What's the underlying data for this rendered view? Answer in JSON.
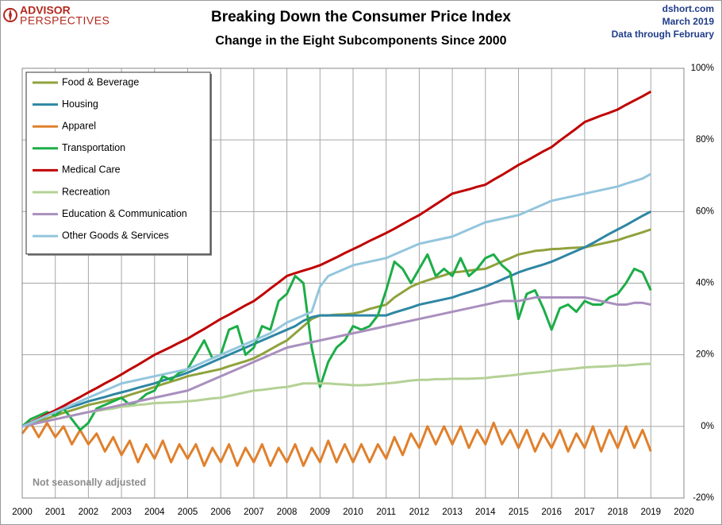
{
  "chart_data": {
    "type": "line",
    "title": "Breaking Down the Consumer Price Index",
    "subtitle": "Change in the Eight Subcomponents  Since 2000",
    "logo": [
      "ADVISOR",
      "PERSPECTIVES"
    ],
    "source_lines": [
      "dshort.com",
      "March 2019",
      "Data through February"
    ],
    "note": "Not seasonally adjusted",
    "grid": true,
    "legend_position": "upper left",
    "xlim": [
      2000,
      2020
    ],
    "xticks": [
      2000,
      2001,
      2002,
      2003,
      2004,
      2005,
      2006,
      2007,
      2008,
      2009,
      2010,
      2011,
      2012,
      2013,
      2014,
      2015,
      2016,
      2017,
      2018,
      2019,
      2020
    ],
    "ylim": [
      -20,
      100
    ],
    "yticks": [
      {
        "value": -20,
        "label": "-20%"
      },
      {
        "value": 0,
        "label": "0%"
      },
      {
        "value": 20,
        "label": "20%"
      },
      {
        "value": 40,
        "label": "40%"
      },
      {
        "value": 60,
        "label": "60%"
      },
      {
        "value": 80,
        "label": "80%"
      },
      {
        "value": 100,
        "label": "100%"
      }
    ],
    "x": [
      2000,
      2000.25,
      2000.5,
      2000.75,
      2001,
      2001.25,
      2001.5,
      2001.75,
      2002,
      2002.25,
      2002.5,
      2002.75,
      2003,
      2003.25,
      2003.5,
      2003.75,
      2004,
      2004.25,
      2004.5,
      2004.75,
      2005,
      2005.25,
      2005.5,
      2005.75,
      2006,
      2006.25,
      2006.5,
      2006.75,
      2007,
      2007.25,
      2007.5,
      2007.75,
      2008,
      2008.25,
      2008.5,
      2008.75,
      2009,
      2009.25,
      2009.5,
      2009.75,
      2010,
      2010.25,
      2010.5,
      2010.75,
      2011,
      2011.25,
      2011.5,
      2011.75,
      2012,
      2012.25,
      2012.5,
      2012.75,
      2013,
      2013.25,
      2013.5,
      2013.75,
      2014,
      2014.25,
      2014.5,
      2014.75,
      2015,
      2015.25,
      2015.5,
      2015.75,
      2016,
      2016.25,
      2016.5,
      2016.75,
      2017,
      2017.25,
      2017.5,
      2017.75,
      2018,
      2018.25,
      2018.5,
      2018.75,
      2019
    ],
    "series": [
      {
        "name": "Food & Beverage",
        "color": "#8fa23c",
        "values": [
          0,
          0.8,
          1.5,
          2.2,
          3,
          3.8,
          4.5,
          5.2,
          6,
          6.5,
          7,
          7.5,
          8,
          8.8,
          9.5,
          10.2,
          11,
          11.8,
          12.5,
          13.2,
          14,
          14.5,
          15,
          15.5,
          16,
          16.8,
          17.5,
          18.2,
          19,
          20.2,
          21.5,
          22.8,
          24,
          26,
          28,
          30,
          31,
          31,
          31.2,
          31.3,
          31.5,
          32,
          32.8,
          33.4,
          34,
          36,
          37.5,
          39,
          40,
          40.8,
          41.5,
          42.2,
          43,
          43.2,
          43.5,
          43.8,
          44,
          45,
          46,
          47,
          48,
          48.5,
          49,
          49.2,
          49.5,
          49.6,
          49.8,
          49.9,
          50,
          50.5,
          51,
          51.5,
          52,
          52.8,
          53.5,
          54.2,
          55
        ]
      },
      {
        "name": "Housing",
        "color": "#2e86a3",
        "values": [
          0,
          1,
          2,
          3,
          4,
          4.8,
          5.5,
          6.2,
          7,
          7.6,
          8.2,
          8.9,
          9.5,
          10.1,
          10.8,
          11.4,
          12,
          12.8,
          13.5,
          14.2,
          15,
          16,
          17,
          18,
          19,
          20,
          21,
          22,
          23,
          24,
          25,
          26,
          27,
          28,
          29.5,
          30.5,
          31,
          31,
          31,
          31,
          31,
          31,
          31,
          31,
          31,
          31.8,
          32.5,
          33.2,
          34,
          34.5,
          35,
          35.5,
          36,
          36.8,
          37.5,
          38.2,
          39,
          40,
          41,
          42,
          43,
          43.8,
          44.5,
          45.2,
          46,
          47,
          48,
          49,
          50,
          51.2,
          52.5,
          53.8,
          55,
          56.2,
          57.5,
          58.8,
          60
        ]
      },
      {
        "name": "Apparel",
        "color": "#e0802c",
        "values": [
          -2,
          1,
          -3,
          1,
          -3,
          0,
          -5,
          -1,
          -5,
          -2,
          -7,
          -3,
          -8,
          -4,
          -10,
          -5,
          -9,
          -4,
          -10,
          -5,
          -9,
          -5,
          -11,
          -6,
          -10,
          -5,
          -11,
          -6,
          -10,
          -5,
          -11,
          -6,
          -10,
          -5,
          -11,
          -6,
          -10,
          -4,
          -10,
          -5,
          -10,
          -5,
          -10,
          -5,
          -9,
          -3,
          -8,
          -2,
          -6,
          0,
          -5,
          0,
          -5,
          0,
          -6,
          -1,
          -5,
          1,
          -5,
          -1,
          -6,
          -1,
          -7,
          -2,
          -6,
          -1,
          -7,
          -2,
          -6,
          0,
          -7,
          -1,
          -6,
          0,
          -6,
          -1,
          -7
        ]
      },
      {
        "name": "Transportation",
        "color": "#1cad47",
        "values": [
          0,
          2,
          3,
          4,
          3,
          5,
          2,
          -1,
          1,
          5,
          6,
          7,
          8,
          6,
          7,
          9,
          10,
          14,
          13,
          15,
          16,
          20,
          24,
          19,
          20,
          27,
          28,
          20,
          22,
          28,
          27,
          35,
          37,
          42,
          40,
          22,
          11,
          18,
          22,
          24,
          28,
          27,
          28,
          31,
          38,
          46,
          44,
          40,
          44,
          48,
          42,
          44,
          42,
          47,
          42,
          44,
          47,
          48,
          45,
          43,
          30,
          37,
          38,
          33,
          27,
          33,
          34,
          32,
          35,
          34,
          34,
          36,
          37,
          40,
          44,
          43,
          38
        ]
      },
      {
        "name": "Medical Care",
        "color": "#c00000",
        "values": [
          0,
          1.1,
          2.2,
          3.4,
          4.5,
          5.7,
          7,
          8.2,
          9.5,
          10.7,
          12,
          13.2,
          14.5,
          15.9,
          17.2,
          18.6,
          20,
          21.1,
          22.2,
          23.4,
          24.5,
          25.9,
          27.2,
          28.6,
          30,
          31.2,
          32.5,
          33.8,
          35,
          36.7,
          38.5,
          40.2,
          42,
          42.8,
          43.5,
          44.2,
          45,
          46.1,
          47.2,
          48.4,
          49.5,
          50.6,
          51.8,
          52.9,
          54,
          55.2,
          56.5,
          57.8,
          59,
          60.5,
          62,
          63.5,
          65,
          65.6,
          66.2,
          66.9,
          67.5,
          68.9,
          70.2,
          71.6,
          73,
          74.2,
          75.5,
          76.8,
          78,
          79.8,
          81.5,
          83.2,
          85,
          85.9,
          86.8,
          87.6,
          88.5,
          89.8,
          91,
          92.2,
          93.5
        ]
      },
      {
        "name": "Recreation",
        "color": "#b5d196",
        "values": [
          0,
          0.5,
          1,
          1.5,
          2,
          2.5,
          3,
          3.5,
          4,
          4.3,
          4.7,
          5,
          5.5,
          5.7,
          6,
          6.2,
          6.5,
          6.6,
          6.7,
          6.8,
          7,
          7.2,
          7.5,
          7.8,
          8,
          8.5,
          9,
          9.5,
          10,
          10.2,
          10.5,
          10.8,
          11,
          11.5,
          12,
          12,
          12,
          12,
          11.8,
          11.7,
          11.5,
          11.5,
          11.6,
          11.8,
          12,
          12.2,
          12.5,
          12.8,
          13,
          13,
          13.2,
          13.2,
          13.3,
          13.3,
          13.3,
          13.4,
          13.5,
          13.8,
          14,
          14.2,
          14.5,
          14.8,
          15,
          15.2,
          15.5,
          15.8,
          16,
          16.2,
          16.5,
          16.6,
          16.7,
          16.8,
          17,
          17,
          17.2,
          17.4,
          17.5
        ]
      },
      {
        "name": "Education & Communication",
        "color": "#a98fbe",
        "values": [
          0,
          0.5,
          1,
          1.5,
          2,
          2.5,
          3,
          3.5,
          4,
          4.5,
          5,
          5.5,
          6,
          6.5,
          7,
          7.5,
          8,
          8.5,
          9,
          9.5,
          10,
          11,
          12,
          13,
          14,
          15,
          16,
          17,
          18,
          19,
          20,
          21,
          22,
          22.5,
          23,
          23.5,
          24,
          24.5,
          25,
          25.5,
          26,
          26.5,
          27,
          27.5,
          28,
          28.5,
          29,
          29.5,
          30,
          30.5,
          31,
          31.5,
          32,
          32.5,
          33,
          33.5,
          34,
          34.5,
          35,
          35,
          35,
          35.5,
          36,
          36,
          36,
          36,
          36,
          36,
          36,
          35.5,
          35,
          34.5,
          34,
          34,
          34.5,
          34.5,
          34
        ]
      },
      {
        "name": "Other Goods & Services",
        "color": "#93c6dd",
        "values": [
          0,
          1,
          2,
          3,
          4,
          5,
          6,
          7,
          8,
          9,
          10,
          11,
          12,
          12.5,
          13,
          13.5,
          14,
          14.5,
          15,
          15.5,
          16,
          17,
          18,
          19,
          20,
          21,
          22,
          23,
          24,
          25,
          26,
          27.5,
          29,
          30,
          31,
          32,
          39,
          42,
          43,
          44,
          45,
          45.5,
          46,
          46.5,
          47,
          48,
          49,
          50,
          51,
          51.5,
          52,
          52.5,
          53,
          54,
          55,
          56,
          57,
          57.5,
          58,
          58.5,
          59,
          60,
          61,
          62,
          63,
          63.5,
          64,
          64.5,
          65,
          65.5,
          66,
          66.5,
          67,
          67.8,
          68.5,
          69.2,
          70.5
        ]
      }
    ]
  }
}
